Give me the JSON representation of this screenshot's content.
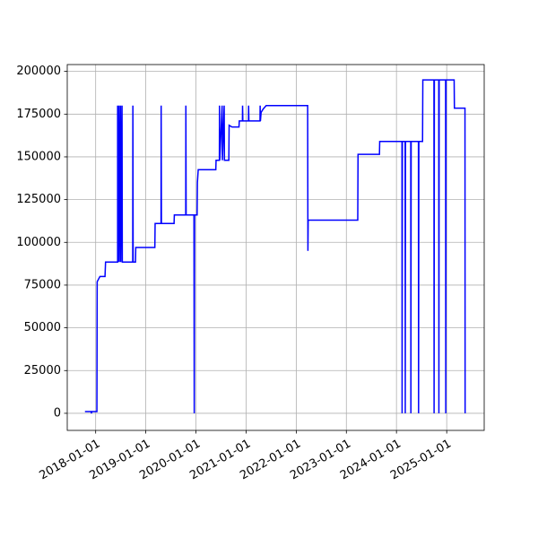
{
  "chart_data": {
    "type": "line",
    "color": "#0000ff",
    "grid": true,
    "x": [
      "2017-10-15",
      "2017-11-28",
      "2017-12-01",
      "2017-12-04",
      "2018-01-10",
      "2018-01-12",
      "2018-02-01",
      "2018-03-10",
      "2018-03-14",
      "2018-06-10",
      "2018-06-10",
      "2018-06-12",
      "2018-06-20",
      "2018-06-22",
      "2018-07-01",
      "2018-07-03",
      "2018-07-12",
      "2018-07-14",
      "2018-09-28",
      "2018-09-29",
      "2018-10-01",
      "2018-10-18",
      "2018-10-20",
      "2019-03-08",
      "2019-03-10",
      "2019-04-22",
      "2019-04-23",
      "2019-04-25",
      "2019-07-26",
      "2019-07-28",
      "2019-10-19",
      "2019-10-20",
      "2019-10-22",
      "2019-12-18",
      "2019-12-20",
      "2019-12-22",
      "2020-01-10",
      "2020-01-12",
      "2020-01-18",
      "2020-05-25",
      "2020-05-27",
      "2020-06-20",
      "2020-06-21",
      "2020-06-23",
      "2020-07-10",
      "2020-07-12",
      "2020-07-25",
      "2020-07-27",
      "2020-08-28",
      "2020-08-30",
      "2020-09-20",
      "2020-11-10",
      "2020-11-12",
      "2020-12-05",
      "2020-12-06",
      "2020-12-08",
      "2021-01-18",
      "2021-01-19",
      "2021-01-21",
      "2021-04-12",
      "2021-04-13",
      "2021-04-15",
      "2021-04-20",
      "2021-05-05",
      "2021-05-27",
      "2022-03-25",
      "2022-03-27",
      "2022-03-29",
      "2023-03-25",
      "2023-03-27",
      "2023-08-30",
      "2023-09-01",
      "2024-02-10",
      "2024-02-11",
      "2024-02-13",
      "2024-03-04",
      "2024-03-05",
      "2024-03-07",
      "2024-04-14",
      "2024-04-15",
      "2024-04-17",
      "2024-06-09",
      "2024-06-10",
      "2024-06-12",
      "2024-07-09",
      "2024-07-11",
      "2024-09-30",
      "2024-10-01",
      "2024-10-03",
      "2024-11-04",
      "2024-11-05",
      "2024-11-07",
      "2024-12-24",
      "2024-12-25",
      "2024-12-27",
      "2025-02-24",
      "2025-02-26",
      "2025-05-14",
      "2025-05-15"
    ],
    "values": [
      1000,
      1000,
      0,
      1000,
      1000,
      77000,
      80000,
      80000,
      88500,
      88500,
      180000,
      88500,
      180000,
      88500,
      180000,
      88500,
      180000,
      88500,
      88500,
      180000,
      88500,
      88500,
      97000,
      97000,
      111000,
      111000,
      180000,
      111000,
      111000,
      116000,
      116000,
      180000,
      116000,
      116000,
      0,
      116000,
      116000,
      135000,
      142500,
      142500,
      148000,
      148000,
      180000,
      148000,
      180000,
      148000,
      180000,
      148000,
      148000,
      168500,
      167500,
      167500,
      171000,
      171000,
      180000,
      171000,
      171000,
      180000,
      171000,
      171000,
      180000,
      171000,
      176000,
      178000,
      180000,
      180000,
      95000,
      113000,
      113000,
      151500,
      151500,
      159000,
      159000,
      0,
      159000,
      159000,
      0,
      159000,
      159000,
      0,
      159000,
      159000,
      0,
      159000,
      159000,
      195000,
      195000,
      0,
      195000,
      195000,
      0,
      195000,
      195000,
      0,
      195000,
      195000,
      178500,
      178500,
      0
    ],
    "xlim": [
      "2017-06-08",
      "2025-10-01"
    ],
    "xticks": [
      "2018-01-01",
      "2019-01-01",
      "2020-01-01",
      "2021-01-01",
      "2022-01-01",
      "2023-01-01",
      "2024-01-01",
      "2025-01-01"
    ],
    "ylim": [
      -10000,
      204000
    ],
    "yticks": [
      0,
      25000,
      50000,
      75000,
      100000,
      125000,
      150000,
      175000,
      200000
    ]
  }
}
